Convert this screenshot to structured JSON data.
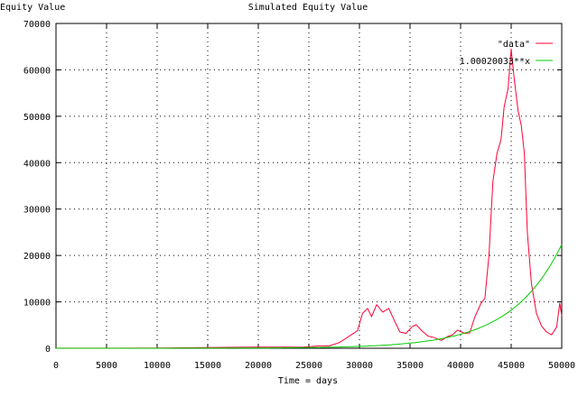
{
  "chart_data": {
    "type": "line",
    "title": "Simulated Equity Value",
    "xlabel": "Time = days",
    "ylabel": "Equity Value",
    "xlim": [
      0,
      50000
    ],
    "ylim": [
      0,
      70000
    ],
    "x_ticks": [
      0,
      5000,
      10000,
      15000,
      20000,
      25000,
      30000,
      35000,
      40000,
      45000,
      50000
    ],
    "y_ticks": [
      0,
      10000,
      20000,
      30000,
      40000,
      50000,
      60000,
      70000
    ],
    "grid": true,
    "legend_position": "top-right",
    "series": [
      {
        "name": "\"data\"",
        "color": "#ff0033",
        "points": [
          [
            0,
            12
          ],
          [
            5000,
            24
          ],
          [
            10000,
            48
          ],
          [
            15000,
            130
          ],
          [
            20000,
            260
          ],
          [
            23000,
            250
          ],
          [
            24500,
            280
          ],
          [
            25000,
            320
          ],
          [
            26000,
            500
          ],
          [
            27000,
            500
          ],
          [
            28000,
            1200
          ],
          [
            29000,
            2600
          ],
          [
            29800,
            3800
          ],
          [
            30300,
            7500
          ],
          [
            30800,
            8600
          ],
          [
            31200,
            6800
          ],
          [
            31700,
            9400
          ],
          [
            32300,
            7800
          ],
          [
            32900,
            8600
          ],
          [
            33400,
            6200
          ],
          [
            34000,
            3500
          ],
          [
            34600,
            3200
          ],
          [
            35200,
            4600
          ],
          [
            35600,
            5100
          ],
          [
            36200,
            3700
          ],
          [
            36800,
            2600
          ],
          [
            37400,
            2300
          ],
          [
            38100,
            1700
          ],
          [
            38700,
            2500
          ],
          [
            39200,
            2900
          ],
          [
            39700,
            3900
          ],
          [
            40400,
            3200
          ],
          [
            40900,
            3300
          ],
          [
            41400,
            6700
          ],
          [
            42000,
            9600
          ],
          [
            42400,
            10800
          ],
          [
            42800,
            20000
          ],
          [
            43200,
            36000
          ],
          [
            43600,
            42000
          ],
          [
            44000,
            45000
          ],
          [
            44300,
            52000
          ],
          [
            44700,
            56000
          ],
          [
            45000,
            64500
          ],
          [
            45300,
            58000
          ],
          [
            45700,
            51000
          ],
          [
            46000,
            48000
          ],
          [
            46300,
            42000
          ],
          [
            46600,
            25000
          ],
          [
            47000,
            14000
          ],
          [
            47500,
            7500
          ],
          [
            48000,
            4800
          ],
          [
            48500,
            3500
          ],
          [
            49000,
            2900
          ],
          [
            49500,
            4600
          ],
          [
            49800,
            9700
          ],
          [
            50000,
            7000
          ]
        ]
      },
      {
        "name": "1.00020033**x",
        "color": "#00cc00",
        "function": {
          "base": 1.00020033
        }
      }
    ]
  }
}
